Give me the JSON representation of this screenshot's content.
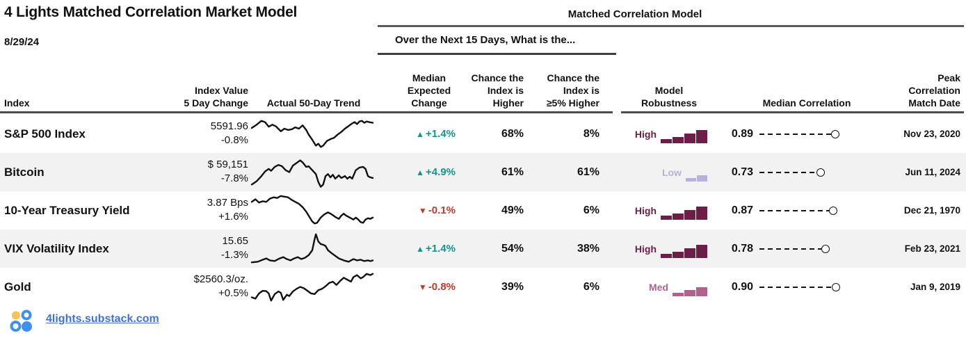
{
  "title": "4 Lights Matched Correlation Market Model",
  "date": "8/29/24",
  "section_headers": {
    "matched_correlation": "Matched Correlation Model",
    "next_15_days": "Over the Next 15 Days, What is the..."
  },
  "columns": {
    "index": "Index",
    "index_value": "Index Value\n5 Day Change",
    "trend": "Actual 50-Day Trend",
    "expected": "Median\nExpected\nChange",
    "chance_higher": "Chance the\nIndex is\nHigher",
    "chance_5pct_higher": "Chance the\nIndex is\n≥5% Higher",
    "robustness": "Model\nRobustness",
    "median_correlation": "Median Correlation",
    "peak_date": "Peak\nCorrelation\nMatch Date"
  },
  "icons": {
    "up_arrow": "▲",
    "down_arrow": "▼",
    "robustness_bars": "ascending-bar-chart",
    "correlation_marker": "open-circle"
  },
  "colors": {
    "positive": "#13948b",
    "negative": "#c43a2a",
    "text": "#111111",
    "row_alt_bg": "#f2f2f2",
    "rule": "#595959",
    "link": "#4070e0",
    "logo_yellow": "#f6c453",
    "logo_blue": "#3d8ff0",
    "robustness": {
      "High": "#6e1d46",
      "Med": "#b2608c",
      "Low": "#b9b1d9"
    }
  },
  "chart_data": {
    "type": "table",
    "title": "4 Lights Matched Correlation Market Model",
    "date": "8/29/24",
    "note": "sparkline trend points are normalized 0-100 (x left-to-right, y top-down)",
    "rows": [
      {
        "name": "S&P 500 Index",
        "value": "5591.96",
        "change": "-0.8%",
        "direction": "up",
        "expected_change": "+1.4%",
        "chance_higher": "68%",
        "chance_5pct_higher": "8%",
        "robustness": "High",
        "median_correlation": "0.89",
        "correlation_value": 0.89,
        "peak_date": "Nov 23, 2020",
        "trend": [
          [
            0,
            32
          ],
          [
            4,
            22
          ],
          [
            8,
            10
          ],
          [
            11,
            14
          ],
          [
            14,
            28
          ],
          [
            17,
            22
          ],
          [
            20,
            27
          ],
          [
            24,
            42
          ],
          [
            27,
            34
          ],
          [
            30,
            38
          ],
          [
            33,
            36
          ],
          [
            36,
            30
          ],
          [
            39,
            34
          ],
          [
            42,
            24
          ],
          [
            45,
            38
          ],
          [
            47,
            52
          ],
          [
            50,
            68
          ],
          [
            53,
            86
          ],
          [
            55,
            80
          ],
          [
            57,
            90
          ],
          [
            59,
            86
          ],
          [
            62,
            72
          ],
          [
            65,
            66
          ],
          [
            68,
            62
          ],
          [
            71,
            52
          ],
          [
            74,
            44
          ],
          [
            77,
            34
          ],
          [
            80,
            26
          ],
          [
            83,
            18
          ],
          [
            85,
            14
          ],
          [
            87,
            20
          ],
          [
            89,
            12
          ],
          [
            91,
            10
          ],
          [
            93,
            16
          ],
          [
            95,
            12
          ],
          [
            97,
            14
          ],
          [
            100,
            16
          ]
        ]
      },
      {
        "name": "Bitcoin",
        "value": "$ 59,151",
        "change": "-7.8%",
        "direction": "up",
        "expected_change": "+4.9%",
        "chance_higher": "61%",
        "chance_5pct_higher": "61%",
        "robustness": "Low",
        "median_correlation": "0.73",
        "correlation_value": 0.73,
        "peak_date": "Jun 11, 2024",
        "trend": [
          [
            0,
            88
          ],
          [
            4,
            78
          ],
          [
            8,
            62
          ],
          [
            11,
            48
          ],
          [
            14,
            40
          ],
          [
            16,
            46
          ],
          [
            19,
            34
          ],
          [
            22,
            28
          ],
          [
            25,
            32
          ],
          [
            28,
            44
          ],
          [
            31,
            50
          ],
          [
            34,
            30
          ],
          [
            37,
            22
          ],
          [
            40,
            14
          ],
          [
            42,
            20
          ],
          [
            45,
            34
          ],
          [
            47,
            32
          ],
          [
            50,
            44
          ],
          [
            53,
            56
          ],
          [
            55,
            80
          ],
          [
            57,
            95
          ],
          [
            59,
            88
          ],
          [
            61,
            62
          ],
          [
            63,
            56
          ],
          [
            65,
            66
          ],
          [
            67,
            58
          ],
          [
            69,
            70
          ],
          [
            72,
            60
          ],
          [
            74,
            68
          ],
          [
            77,
            62
          ],
          [
            79,
            70
          ],
          [
            81,
            64
          ],
          [
            83,
            70
          ],
          [
            86,
            44
          ],
          [
            89,
            36
          ],
          [
            92,
            34
          ],
          [
            94,
            40
          ],
          [
            96,
            62
          ],
          [
            98,
            66
          ],
          [
            100,
            68
          ]
        ]
      },
      {
        "name": "10-Year Treasury Yield",
        "value": "3.87 Bps",
        "change": "+1.6%",
        "direction": "down",
        "expected_change": "-0.1%",
        "chance_higher": "49%",
        "chance_5pct_higher": "6%",
        "robustness": "High",
        "median_correlation": "0.87",
        "correlation_value": 0.87,
        "peak_date": "Dec 21, 1970",
        "trend": [
          [
            0,
            24
          ],
          [
            3,
            16
          ],
          [
            6,
            26
          ],
          [
            9,
            22
          ],
          [
            12,
            24
          ],
          [
            15,
            14
          ],
          [
            18,
            10
          ],
          [
            21,
            12
          ],
          [
            24,
            6
          ],
          [
            27,
            8
          ],
          [
            30,
            10
          ],
          [
            33,
            18
          ],
          [
            36,
            24
          ],
          [
            39,
            30
          ],
          [
            42,
            40
          ],
          [
            45,
            54
          ],
          [
            48,
            72
          ],
          [
            50,
            84
          ],
          [
            52,
            90
          ],
          [
            54,
            88
          ],
          [
            57,
            72
          ],
          [
            60,
            62
          ],
          [
            63,
            56
          ],
          [
            66,
            62
          ],
          [
            69,
            70
          ],
          [
            72,
            76
          ],
          [
            74,
            66
          ],
          [
            76,
            60
          ],
          [
            78,
            66
          ],
          [
            81,
            72
          ],
          [
            84,
            78
          ],
          [
            86,
            72
          ],
          [
            88,
            78
          ],
          [
            90,
            86
          ],
          [
            92,
            88
          ],
          [
            94,
            78
          ],
          [
            96,
            74
          ],
          [
            98,
            76
          ],
          [
            100,
            72
          ]
        ]
      },
      {
        "name": "VIX Volatility Index",
        "value": "15.65",
        "change": "-1.3%",
        "direction": "up",
        "expected_change": "+1.4%",
        "chance_higher": "54%",
        "chance_5pct_higher": "38%",
        "robustness": "High",
        "median_correlation": "0.78",
        "correlation_value": 0.78,
        "peak_date": "Feb 23, 2021",
        "trend": [
          [
            0,
            92
          ],
          [
            5,
            90
          ],
          [
            9,
            84
          ],
          [
            12,
            80
          ],
          [
            15,
            86
          ],
          [
            19,
            88
          ],
          [
            23,
            80
          ],
          [
            26,
            76
          ],
          [
            29,
            82
          ],
          [
            32,
            86
          ],
          [
            35,
            80
          ],
          [
            38,
            76
          ],
          [
            41,
            82
          ],
          [
            44,
            78
          ],
          [
            47,
            70
          ],
          [
            50,
            55
          ],
          [
            52,
            20
          ],
          [
            53,
            6
          ],
          [
            55,
            28
          ],
          [
            57,
            36
          ],
          [
            59,
            38
          ],
          [
            61,
            42
          ],
          [
            63,
            55
          ],
          [
            66,
            64
          ],
          [
            69,
            72
          ],
          [
            72,
            80
          ],
          [
            76,
            86
          ],
          [
            80,
            90
          ],
          [
            84,
            82
          ],
          [
            87,
            86
          ],
          [
            90,
            84
          ],
          [
            93,
            88
          ],
          [
            96,
            86
          ],
          [
            98,
            88
          ],
          [
            100,
            86
          ]
        ]
      },
      {
        "name": "Gold",
        "value": "$2560.3/oz.",
        "change": "+0.5%",
        "direction": "down",
        "expected_change": "-0.8%",
        "chance_higher": "39%",
        "chance_5pct_higher": "6%",
        "robustness": "Med",
        "median_correlation": "0.90",
        "correlation_value": 0.9,
        "peak_date": "Jan 9, 2019",
        "trend": [
          [
            0,
            82
          ],
          [
            3,
            86
          ],
          [
            6,
            70
          ],
          [
            9,
            62
          ],
          [
            12,
            63
          ],
          [
            14,
            70
          ],
          [
            16,
            92
          ],
          [
            19,
            72
          ],
          [
            22,
            64
          ],
          [
            24,
            68
          ],
          [
            26,
            90
          ],
          [
            29,
            74
          ],
          [
            31,
            78
          ],
          [
            34,
            64
          ],
          [
            37,
            56
          ],
          [
            40,
            50
          ],
          [
            43,
            54
          ],
          [
            46,
            62
          ],
          [
            49,
            70
          ],
          [
            52,
            72
          ],
          [
            55,
            60
          ],
          [
            58,
            56
          ],
          [
            61,
            48
          ],
          [
            64,
            38
          ],
          [
            67,
            34
          ],
          [
            70,
            44
          ],
          [
            73,
            32
          ],
          [
            76,
            22
          ],
          [
            79,
            28
          ],
          [
            82,
            34
          ],
          [
            84,
            20
          ],
          [
            87,
            14
          ],
          [
            90,
            24
          ],
          [
            92,
            20
          ],
          [
            95,
            10
          ],
          [
            98,
            14
          ],
          [
            100,
            10
          ]
        ]
      }
    ]
  },
  "footer": {
    "link_label": "4lights.substack.com"
  }
}
